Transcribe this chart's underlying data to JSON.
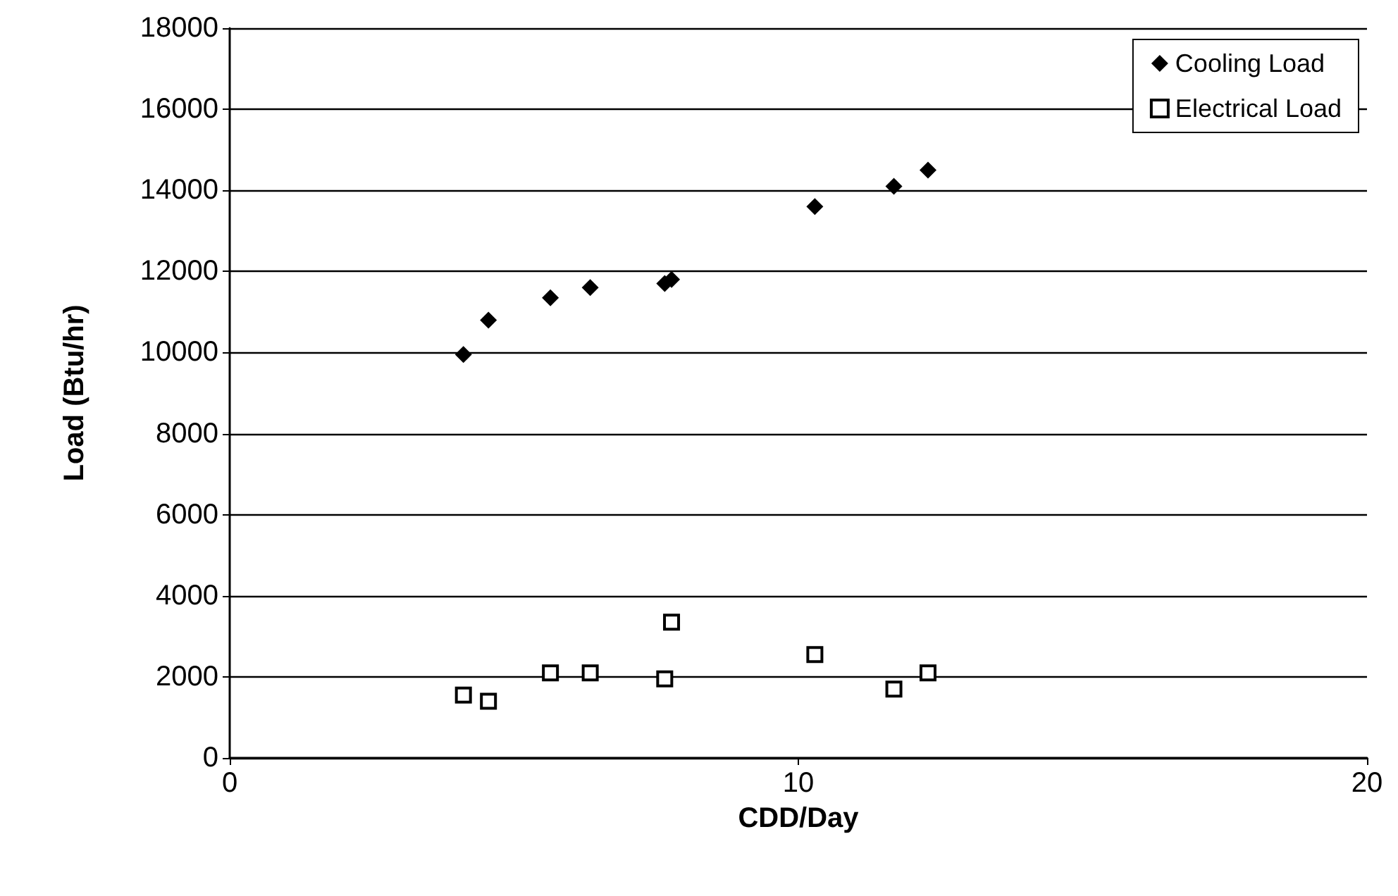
{
  "chart_data": {
    "type": "scatter",
    "xlabel": "CDD/Day",
    "ylabel": "Load (Btu/hr)",
    "x": [
      4.11,
      4.55,
      5.64,
      6.34,
      7.65,
      7.77,
      10.29,
      11.68,
      12.28
    ],
    "series": [
      {
        "name": "Cooling Load",
        "color": "#000000",
        "marker": "diamond",
        "values": [
          9950,
          10800,
          11350,
          11600,
          11700,
          11800,
          13600,
          14100,
          14500
        ]
      },
      {
        "name": "Electrical Load",
        "color": "#000000",
        "marker": "square",
        "values": [
          1550,
          1400,
          2100,
          2100,
          1950,
          3350,
          2550,
          1700,
          2100
        ]
      }
    ],
    "xlim": [
      0,
      20
    ],
    "xticks": [
      0,
      10,
      20
    ],
    "ylim": [
      0,
      18000
    ],
    "yticks": [
      0,
      2000,
      4000,
      6000,
      8000,
      10000,
      12000,
      14000,
      16000,
      18000
    ],
    "grid": "y",
    "legend": "top right"
  }
}
